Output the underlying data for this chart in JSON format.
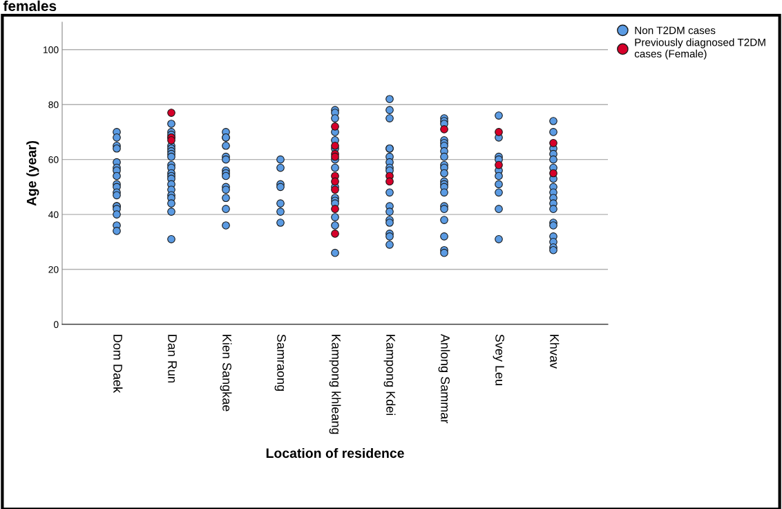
{
  "chart_data": {
    "type": "scatter",
    "title": "females",
    "xlabel": "Location of residence",
    "ylabel": "Age (year)",
    "categories": [
      "Dom Daek",
      "Dan Run",
      "Kien Sangkae",
      "Samraong",
      "Kampong khleang",
      "Kampong Kdei",
      "Anlong Sammar",
      "Svey Leu",
      "Khvav"
    ],
    "ylim": [
      0,
      110
    ],
    "yticks": [
      0,
      20,
      40,
      60,
      80,
      100
    ],
    "grid": "y",
    "legend": "top right",
    "marker": "circle",
    "series": [
      {
        "name": "Non T2DM cases",
        "color": "#5b9be3",
        "x": [
          "Dom Daek",
          "Dom Daek",
          "Dom Daek",
          "Dom Daek",
          "Dom Daek",
          "Dom Daek",
          "Dom Daek",
          "Dom Daek",
          "Dom Daek",
          "Dom Daek",
          "Dom Daek",
          "Dom Daek",
          "Dom Daek",
          "Dom Daek",
          "Dom Daek",
          "Dom Daek",
          "Dom Daek",
          "Dom Daek",
          "Dan Run",
          "Dan Run",
          "Dan Run",
          "Dan Run",
          "Dan Run",
          "Dan Run",
          "Dan Run",
          "Dan Run",
          "Dan Run",
          "Dan Run",
          "Dan Run",
          "Dan Run",
          "Dan Run",
          "Dan Run",
          "Dan Run",
          "Dan Run",
          "Dan Run",
          "Dan Run",
          "Dan Run",
          "Dan Run",
          "Dan Run",
          "Kien Sangkae",
          "Kien Sangkae",
          "Kien Sangkae",
          "Kien Sangkae",
          "Kien Sangkae",
          "Kien Sangkae",
          "Kien Sangkae",
          "Kien Sangkae",
          "Kien Sangkae",
          "Kien Sangkae",
          "Kien Sangkae",
          "Kien Sangkae",
          "Kien Sangkae",
          "Kien Sangkae",
          "Samraong",
          "Samraong",
          "Samraong",
          "Samraong",
          "Samraong",
          "Samraong",
          "Samraong",
          "Kampong khleang",
          "Kampong khleang",
          "Kampong khleang",
          "Kampong khleang",
          "Kampong khleang",
          "Kampong khleang",
          "Kampong khleang",
          "Kampong khleang",
          "Kampong khleang",
          "Kampong khleang",
          "Kampong khleang",
          "Kampong khleang",
          "Kampong khleang",
          "Kampong khleang",
          "Kampong khleang",
          "Kampong Kdei",
          "Kampong Kdei",
          "Kampong Kdei",
          "Kampong Kdei",
          "Kampong Kdei",
          "Kampong Kdei",
          "Kampong Kdei",
          "Kampong Kdei",
          "Kampong Kdei",
          "Kampong Kdei",
          "Kampong Kdei",
          "Kampong Kdei",
          "Kampong Kdei",
          "Kampong Kdei",
          "Kampong Kdei",
          "Kampong Kdei",
          "Kampong Kdei",
          "Anlong Sammar",
          "Anlong Sammar",
          "Anlong Sammar",
          "Anlong Sammar",
          "Anlong Sammar",
          "Anlong Sammar",
          "Anlong Sammar",
          "Anlong Sammar",
          "Anlong Sammar",
          "Anlong Sammar",
          "Anlong Sammar",
          "Anlong Sammar",
          "Anlong Sammar",
          "Anlong Sammar",
          "Anlong Sammar",
          "Anlong Sammar",
          "Anlong Sammar",
          "Anlong Sammar",
          "Anlong Sammar",
          "Anlong Sammar",
          "Anlong Sammar",
          "Svey Leu",
          "Svey Leu",
          "Svey Leu",
          "Svey Leu",
          "Svey Leu",
          "Svey Leu",
          "Svey Leu",
          "Svey Leu",
          "Svey Leu",
          "Svey Leu",
          "Khvav",
          "Khvav",
          "Khvav",
          "Khvav",
          "Khvav",
          "Khvav",
          "Khvav",
          "Khvav",
          "Khvav",
          "Khvav",
          "Khvav",
          "Khvav",
          "Khvav",
          "Khvav",
          "Khvav",
          "Khvav",
          "Khvav",
          "Khvav"
        ],
        "values": [
          70,
          68,
          65,
          64,
          59,
          57,
          56,
          54,
          51,
          50,
          48,
          47,
          43,
          43,
          42,
          40,
          36,
          34,
          73,
          70,
          69,
          68,
          65,
          64,
          63,
          62,
          61,
          58,
          57,
          55,
          54,
          53,
          51,
          49,
          47,
          46,
          44,
          41,
          31,
          70,
          68,
          68,
          65,
          61,
          60,
          56,
          55,
          54,
          50,
          49,
          46,
          42,
          36,
          60,
          57,
          51,
          50,
          44,
          41,
          37,
          78,
          77,
          75,
          70,
          67,
          64,
          60,
          57,
          50,
          46,
          45,
          44,
          39,
          36,
          26,
          82,
          78,
          75,
          64,
          64,
          61,
          59,
          57,
          56,
          48,
          43,
          41,
          38,
          37,
          33,
          32,
          29,
          75,
          74,
          73,
          67,
          66,
          65,
          63,
          61,
          58,
          57,
          55,
          52,
          51,
          50,
          48,
          43,
          42,
          38,
          32,
          27,
          26,
          76,
          68,
          61,
          60,
          56,
          54,
          51,
          48,
          42,
          31,
          74,
          70,
          64,
          62,
          60,
          57,
          53,
          50,
          48,
          46,
          44,
          42,
          37,
          36,
          32,
          30,
          28,
          27
        ]
      },
      {
        "name": "Previously diagnosed T2DM cases (Female)",
        "color": "#d6002a",
        "x": [
          "Dan Run",
          "Dan Run",
          "Dan Run",
          "Kampong khleang",
          "Kampong khleang",
          "Kampong khleang",
          "Kampong khleang",
          "Kampong khleang",
          "Kampong khleang",
          "Kampong khleang",
          "Kampong khleang",
          "Kampong khleang",
          "Kampong Kdei",
          "Kampong Kdei",
          "Anlong Sammar",
          "Svey Leu",
          "Svey Leu",
          "Khvav",
          "Khvav"
        ],
        "values": [
          77,
          68,
          67,
          72,
          65,
          62,
          61,
          54,
          52,
          49,
          42,
          33,
          54,
          52,
          71,
          70,
          58,
          66,
          55
        ]
      }
    ]
  }
}
